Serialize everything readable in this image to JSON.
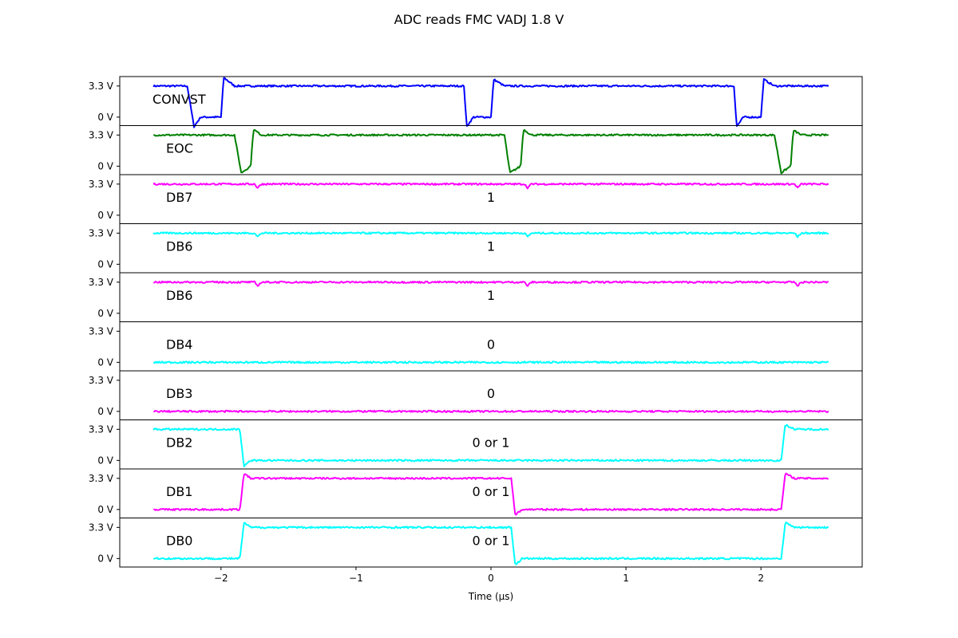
{
  "chart_data": {
    "type": "line",
    "title": "ADC reads FMC VADJ 1.8 V",
    "xlabel": "Time (µs)",
    "ylabel": "",
    "xlim": [
      -2.75,
      2.75
    ],
    "x_ticks": [
      -2,
      -1,
      0,
      1,
      2
    ],
    "x_tick_labels": [
      "−2",
      "−1",
      "0",
      "1",
      "2"
    ],
    "y_ticks": [
      0,
      3.3
    ],
    "y_tick_labels": [
      "0 V",
      "3.3 V"
    ],
    "ylim": [
      -0.9,
      4.3
    ],
    "x_range_data": [
      -2.5,
      2.5
    ],
    "grid": false,
    "legend": "none",
    "series": [
      {
        "name": "CONVST",
        "note": "",
        "color": "#0000ff",
        "points": [
          [
            -2.5,
            3.3
          ],
          [
            -2.25,
            3.3
          ],
          [
            -2.2,
            -1.0
          ],
          [
            -2.15,
            0.0
          ],
          [
            -2.0,
            0.0
          ],
          [
            -1.98,
            4.2
          ],
          [
            -1.9,
            3.3
          ],
          [
            -0.2,
            3.3
          ],
          [
            -0.18,
            -1.0
          ],
          [
            -0.13,
            0.0
          ],
          [
            0.0,
            0.0
          ],
          [
            0.02,
            4.0
          ],
          [
            0.1,
            3.3
          ],
          [
            1.8,
            3.3
          ],
          [
            1.82,
            -1.0
          ],
          [
            1.87,
            0.0
          ],
          [
            2.0,
            0.0
          ],
          [
            2.02,
            4.0
          ],
          [
            2.1,
            3.3
          ],
          [
            2.5,
            3.3
          ]
        ]
      },
      {
        "name": "EOC",
        "note": "",
        "color": "#008000",
        "points": [
          [
            -2.5,
            3.3
          ],
          [
            -1.9,
            3.3
          ],
          [
            -1.85,
            -0.7
          ],
          [
            -1.78,
            0.0
          ],
          [
            -1.76,
            3.9
          ],
          [
            -1.7,
            3.3
          ],
          [
            0.1,
            3.3
          ],
          [
            0.14,
            -0.7
          ],
          [
            0.22,
            0.0
          ],
          [
            0.24,
            3.9
          ],
          [
            0.3,
            3.3
          ],
          [
            2.1,
            3.3
          ],
          [
            2.15,
            -0.7
          ],
          [
            2.22,
            0.0
          ],
          [
            2.24,
            3.8
          ],
          [
            2.3,
            3.3
          ],
          [
            2.5,
            3.3
          ]
        ]
      },
      {
        "name": "DB7",
        "note": "1",
        "color": "#ff00ff",
        "points": [
          [
            -2.5,
            3.3
          ],
          [
            -1.75,
            3.3
          ],
          [
            -1.73,
            2.9
          ],
          [
            -1.7,
            3.3
          ],
          [
            0.25,
            3.3
          ],
          [
            0.27,
            2.9
          ],
          [
            0.3,
            3.3
          ],
          [
            2.25,
            3.3
          ],
          [
            2.27,
            2.9
          ],
          [
            2.3,
            3.3
          ],
          [
            2.5,
            3.3
          ]
        ]
      },
      {
        "name": "DB6",
        "note": "1",
        "color": "#00ffff",
        "points": [
          [
            -2.5,
            3.3
          ],
          [
            -1.75,
            3.3
          ],
          [
            -1.73,
            2.9
          ],
          [
            -1.7,
            3.3
          ],
          [
            0.25,
            3.3
          ],
          [
            0.27,
            2.9
          ],
          [
            0.3,
            3.3
          ],
          [
            2.25,
            3.3
          ],
          [
            2.27,
            2.9
          ],
          [
            2.3,
            3.3
          ],
          [
            2.5,
            3.3
          ]
        ]
      },
      {
        "name": "DB6",
        "note": "1",
        "color": "#ff00ff",
        "points": [
          [
            -2.5,
            3.3
          ],
          [
            -1.75,
            3.3
          ],
          [
            -1.73,
            2.9
          ],
          [
            -1.7,
            3.3
          ],
          [
            0.25,
            3.3
          ],
          [
            0.27,
            2.9
          ],
          [
            0.3,
            3.3
          ],
          [
            2.25,
            3.3
          ],
          [
            2.27,
            2.9
          ],
          [
            2.3,
            3.3
          ],
          [
            2.5,
            3.3
          ]
        ]
      },
      {
        "name": "DB4",
        "note": "0",
        "color": "#00ffff",
        "points": [
          [
            -2.5,
            0.0
          ],
          [
            2.5,
            0.0
          ]
        ]
      },
      {
        "name": "DB3",
        "note": "0",
        "color": "#ff00ff",
        "points": [
          [
            -2.5,
            0.0
          ],
          [
            2.5,
            0.0
          ]
        ]
      },
      {
        "name": "DB2",
        "note": "0 or 1",
        "color": "#00ffff",
        "points": [
          [
            -2.5,
            3.3
          ],
          [
            -1.86,
            3.3
          ],
          [
            -1.83,
            -0.6
          ],
          [
            -1.78,
            0.0
          ],
          [
            2.15,
            0.0
          ],
          [
            2.18,
            3.8
          ],
          [
            2.25,
            3.3
          ],
          [
            2.5,
            3.3
          ]
        ]
      },
      {
        "name": "DB1",
        "note": "0 or 1",
        "color": "#ff00ff",
        "points": [
          [
            -2.5,
            0.0
          ],
          [
            -1.86,
            0.0
          ],
          [
            -1.83,
            3.8
          ],
          [
            -1.78,
            3.3
          ],
          [
            0.15,
            3.3
          ],
          [
            0.18,
            -0.6
          ],
          [
            0.23,
            0.0
          ],
          [
            2.15,
            0.0
          ],
          [
            2.18,
            3.8
          ],
          [
            2.25,
            3.3
          ],
          [
            2.5,
            3.3
          ]
        ]
      },
      {
        "name": "DB0",
        "note": "0 or 1",
        "color": "#00ffff",
        "points": [
          [
            -2.5,
            0.0
          ],
          [
            -1.86,
            0.0
          ],
          [
            -1.83,
            3.8
          ],
          [
            -1.78,
            3.3
          ],
          [
            0.15,
            3.3
          ],
          [
            0.18,
            -0.7
          ],
          [
            0.23,
            0.0
          ],
          [
            2.15,
            0.0
          ],
          [
            2.18,
            3.8
          ],
          [
            2.25,
            3.3
          ],
          [
            2.5,
            3.3
          ]
        ]
      }
    ]
  }
}
